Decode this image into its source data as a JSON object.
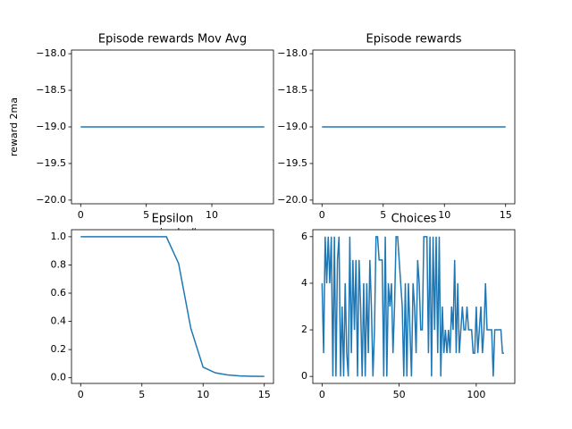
{
  "chart_data": [
    {
      "type": "line",
      "title": "Episode rewards Mov Avg",
      "xlabel": "episode #",
      "ylabel": "reward 2ma",
      "x": [
        0,
        1,
        2,
        3,
        4,
        5,
        6,
        7,
        8,
        9,
        10,
        11,
        12,
        13,
        14
      ],
      "series": [
        {
          "color": "#1f77b4",
          "values": [
            -19,
            -19,
            -19,
            -19,
            -19,
            -19,
            -19,
            -19,
            -19,
            -19,
            -19,
            -19,
            -19,
            -19,
            -19
          ]
        }
      ],
      "xlim": [
        -0.7,
        14.7
      ],
      "xticks": [
        0,
        5,
        10
      ],
      "ylim": [
        -20.05,
        -17.95
      ],
      "yticks": [
        {
          "value": -18,
          "label": "−18.0"
        },
        {
          "value": -18.5,
          "label": "−18.5"
        },
        {
          "value": -19,
          "label": "−19.0"
        },
        {
          "value": -19.5,
          "label": "−19.5"
        },
        {
          "value": -20,
          "label": "−20.0"
        }
      ]
    },
    {
      "type": "line",
      "title": "Episode rewards",
      "x": [
        0,
        1,
        2,
        3,
        4,
        5,
        6,
        7,
        8,
        9,
        10,
        11,
        12,
        13,
        14,
        15
      ],
      "series": [
        {
          "color": "#1f77b4",
          "values": [
            -19,
            -19,
            -19,
            -19,
            -19,
            -19,
            -19,
            -19,
            -19,
            -19,
            -19,
            -19,
            -19,
            -19,
            -19,
            -19
          ]
        }
      ],
      "xlim": [
        -0.75,
        15.75
      ],
      "xticks": [
        0,
        5,
        10,
        15
      ],
      "ylim": [
        -20.05,
        -17.95
      ],
      "yticks": [
        {
          "value": -18,
          "label": "−18.0"
        },
        {
          "value": -18.5,
          "label": "−18.5"
        },
        {
          "value": -19,
          "label": "−19.0"
        },
        {
          "value": -19.5,
          "label": "−19.5"
        },
        {
          "value": -20,
          "label": "−20.0"
        }
      ]
    },
    {
      "type": "line",
      "title": "Epsilon",
      "x": [
        0,
        1,
        2,
        3,
        4,
        5,
        6,
        7,
        8,
        9,
        10,
        11,
        12,
        13,
        14,
        15
      ],
      "series": [
        {
          "color": "#1f77b4",
          "values": [
            1,
            1,
            1,
            1,
            1,
            1,
            1,
            1,
            0.81,
            0.35,
            0.075,
            0.035,
            0.02,
            0.013,
            0.011,
            0.01
          ]
        }
      ],
      "xlim": [
        -0.75,
        15.75
      ],
      "xticks": [
        0,
        5,
        10,
        15
      ],
      "ylim": [
        -0.04,
        1.05
      ],
      "yticks": [
        {
          "value": 0,
          "label": "0.0"
        },
        0.2,
        0.4,
        0.6,
        0.8,
        {
          "value": 1,
          "label": "1.0"
        }
      ]
    },
    {
      "type": "line",
      "title": "Choices",
      "x": [
        0,
        1,
        2,
        3,
        4,
        5,
        6,
        7,
        8,
        9,
        10,
        11,
        12,
        13,
        14,
        15,
        16,
        17,
        18,
        19,
        20,
        21,
        22,
        23,
        24,
        25,
        26,
        27,
        28,
        29,
        30,
        31,
        32,
        33,
        34,
        35,
        36,
        37,
        38,
        39,
        40,
        41,
        42,
        43,
        44,
        45,
        46,
        47,
        48,
        49,
        50,
        51,
        52,
        53,
        54,
        55,
        56,
        57,
        58,
        59,
        60,
        61,
        62,
        63,
        64,
        65,
        66,
        67,
        68,
        69,
        70,
        71,
        72,
        73,
        74,
        75,
        76,
        77,
        78,
        79,
        80,
        81,
        82,
        83,
        84,
        85,
        86,
        87,
        88,
        89,
        90,
        91,
        92,
        93,
        94,
        95,
        96,
        97,
        98,
        99,
        100,
        101,
        102,
        103,
        104,
        105,
        106,
        107,
        108,
        109,
        110,
        111,
        112,
        113,
        114,
        115,
        116,
        117,
        118
      ],
      "series": [
        {
          "color": "#1f77b4",
          "values": [
            4,
            1,
            6,
            4,
            6,
            4,
            6,
            0,
            6,
            0,
            5,
            6,
            0,
            3,
            0,
            4,
            1,
            0,
            6,
            1,
            5,
            2,
            5,
            0,
            5,
            3,
            0,
            4,
            0,
            4,
            1,
            5,
            3,
            0,
            2,
            6,
            6,
            5,
            5,
            5,
            0,
            6,
            0,
            4,
            3,
            4,
            1,
            3,
            6,
            6,
            5,
            4,
            3,
            0,
            4,
            0,
            4,
            2,
            0,
            4,
            3,
            1,
            5,
            4,
            2,
            2,
            6,
            6,
            6,
            1,
            6,
            0,
            6,
            2,
            6,
            1,
            6,
            0,
            3,
            1,
            2,
            1,
            2,
            1,
            3,
            2,
            5,
            1,
            4,
            1,
            2,
            3,
            2,
            2,
            3,
            2,
            2,
            2,
            1,
            1,
            3,
            1,
            2,
            3,
            1,
            2,
            4,
            2,
            2,
            2,
            2,
            0,
            2,
            2,
            2,
            2,
            2,
            1,
            1
          ]
        }
      ],
      "xlim": [
        -6,
        125
      ],
      "xticks": [
        0,
        50,
        100
      ],
      "ylim": [
        -0.3,
        6.3
      ],
      "yticks": [
        0,
        2,
        4,
        6
      ]
    }
  ]
}
